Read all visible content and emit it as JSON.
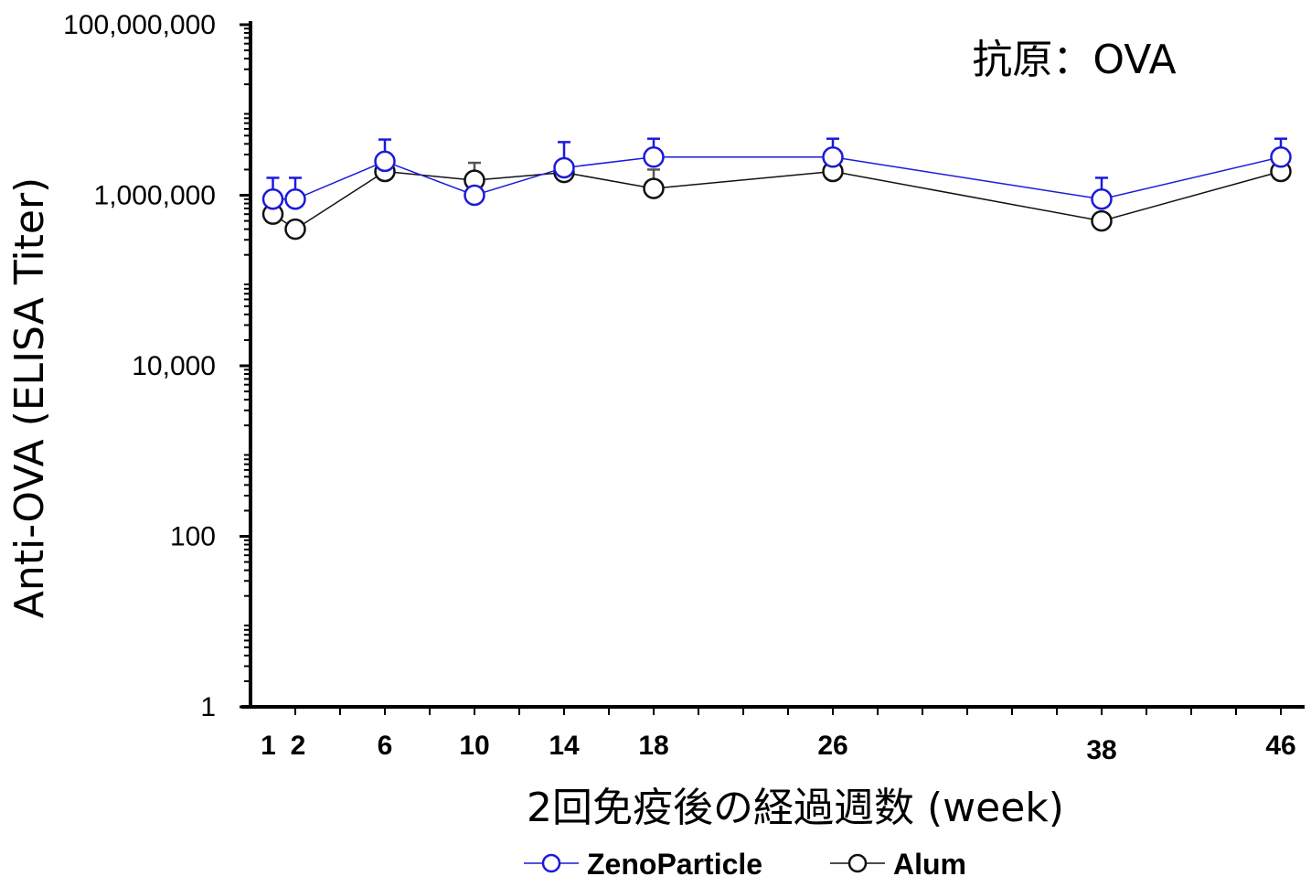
{
  "chart_data": {
    "type": "line",
    "annotation": "抗原：OVA",
    "xlabel": "2回免疫後の経過週数 (week)",
    "ylabel": "Anti-OVA (ELISA Titer)",
    "y_scale": "log",
    "ylim": [
      1,
      100000000
    ],
    "xlim": [
      0,
      47
    ],
    "y_ticks": [
      {
        "value": 1,
        "label": "1"
      },
      {
        "value": 100,
        "label": "100"
      },
      {
        "value": 10000,
        "label": "10,000"
      },
      {
        "value": 1000000,
        "label": "1,000,000"
      },
      {
        "value": 100000000,
        "label": "100,000,000"
      }
    ],
    "x_ticks": [
      {
        "value": 1,
        "label": "1"
      },
      {
        "value": 2,
        "label": "2"
      },
      {
        "value": 6,
        "label": "6"
      },
      {
        "value": 10,
        "label": "10"
      },
      {
        "value": 14,
        "label": "14"
      },
      {
        "value": 18,
        "label": "18"
      },
      {
        "value": 26,
        "label": "26"
      },
      {
        "value": 38,
        "label": "38"
      },
      {
        "value": 46,
        "label": "46"
      }
    ],
    "grid": false,
    "legend_position": "bottom",
    "x": [
      1,
      2,
      6,
      10,
      14,
      18,
      26,
      38,
      46
    ],
    "series": [
      {
        "name": "ZenoParticle",
        "color": "#1a1adc",
        "values": [
          900000,
          900000,
          2500000,
          1000000,
          2100000,
          2800000,
          2800000,
          900000,
          2800000
        ],
        "error_upper": [
          1600000,
          1600000,
          4500000,
          null,
          4200000,
          4600000,
          4600000,
          1600000,
          4600000
        ]
      },
      {
        "name": "Alum",
        "color": "#111111",
        "values": [
          600000,
          400000,
          1900000,
          1500000,
          1850000,
          1200000,
          1900000,
          500000,
          1900000
        ],
        "error_upper": [
          null,
          null,
          null,
          2400000,
          null,
          2000000,
          null,
          null,
          null
        ]
      }
    ]
  }
}
